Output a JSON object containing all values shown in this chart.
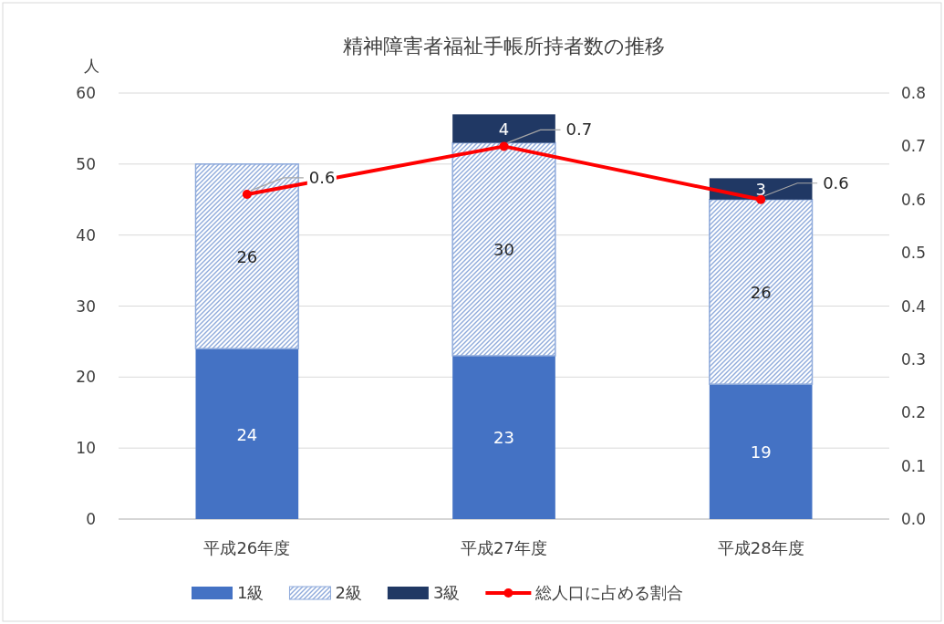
{
  "chart_data": {
    "type": "bar",
    "title": "精神障害者福祉手帳所持者数の推移",
    "ylabel": "人",
    "categories": [
      "平成26年度",
      "平成27年度",
      "平成28年度"
    ],
    "stacked": true,
    "series": [
      {
        "name": "1級",
        "color": "#4472c4",
        "values": [
          24,
          23,
          19
        ],
        "value_labels": [
          "24",
          "23",
          "19"
        ]
      },
      {
        "name": "2級",
        "color": "#8eaadb",
        "values": [
          26,
          30,
          26
        ],
        "value_labels": [
          "26",
          "30",
          "26"
        ]
      },
      {
        "name": "3級",
        "color": "#203864",
        "values": [
          null,
          4,
          3
        ],
        "value_labels": [
          null,
          "4",
          "3"
        ]
      },
      {
        "name": "総人口に占める割合",
        "type": "line",
        "axis": "y2",
        "color": "#ff0000",
        "marker": "circle",
        "values": [
          0.61,
          0.7,
          0.6
        ],
        "value_labels": [
          "0.6",
          "0.7",
          "0.6"
        ]
      }
    ],
    "ylim": [
      0,
      60
    ],
    "yticks": [
      0,
      10,
      20,
      30,
      40,
      50,
      60
    ],
    "y2lim": [
      0,
      0.8
    ],
    "y2ticks": [
      {
        "value": 0,
        "label": "0.0"
      },
      0.1,
      0.2,
      0.3,
      0.4,
      0.5,
      0.6,
      0.7,
      0.8
    ],
    "grid": "y",
    "legend": "bottom"
  }
}
